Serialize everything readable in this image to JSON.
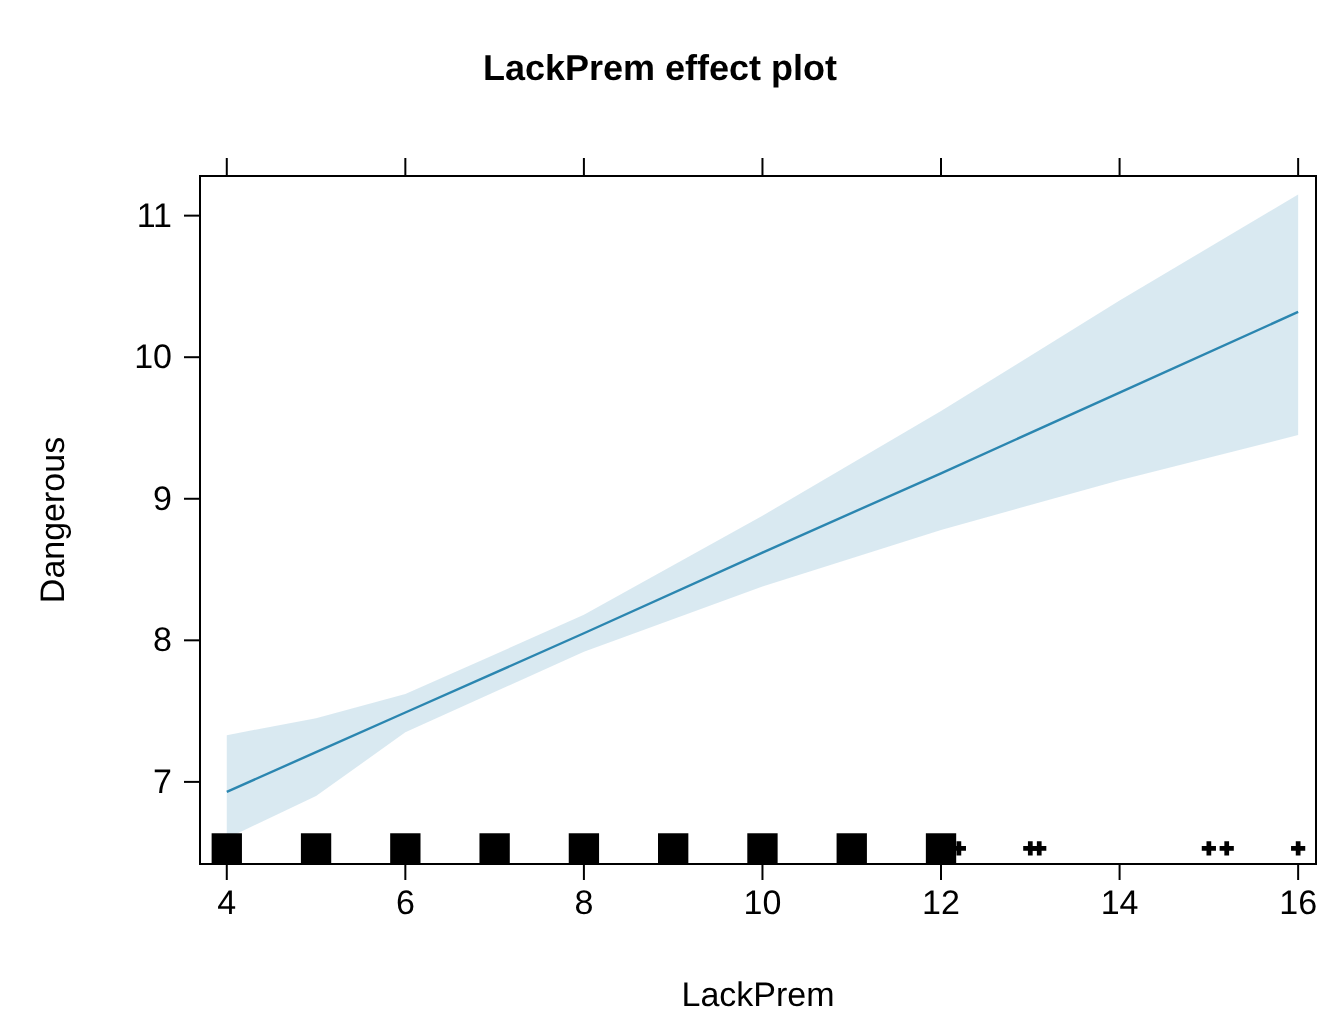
{
  "chart_data": {
    "type": "line",
    "title": "LackPrem effect plot",
    "xlabel": "LackPrem",
    "ylabel": "Dangerous",
    "xlim": [
      3.7,
      16.2
    ],
    "ylim": [
      6.42,
      11.28
    ],
    "xticks": [
      4,
      6,
      8,
      10,
      12,
      14,
      16
    ],
    "yticks": [
      7,
      8,
      9,
      10,
      11
    ],
    "grid": false,
    "series": [
      {
        "color": "#2b86b0",
        "x": [
          4,
          5,
          6,
          8,
          10,
          12,
          14,
          16
        ],
        "values": [
          6.93,
          7.21,
          7.49,
          8.05,
          8.62,
          9.18,
          9.75,
          10.32
        ],
        "lower": [
          6.6,
          6.9,
          7.35,
          7.92,
          8.38,
          8.78,
          9.13,
          9.45
        ],
        "upper": [
          7.33,
          7.45,
          7.62,
          8.18,
          8.88,
          9.62,
          10.4,
          11.15
        ],
        "marker": "none"
      },
      {
        "type": "scatter",
        "color": "#000000",
        "x": [
          4,
          5,
          6,
          7,
          8,
          9,
          10,
          11,
          12
        ],
        "values": [
          6.53,
          6.53,
          6.53,
          6.53,
          6.53,
          6.53,
          6.53,
          6.53,
          6.53
        ],
        "marker": "square"
      },
      {
        "type": "scatter",
        "color": "#000000",
        "x": [
          12.2,
          13,
          13.1,
          15,
          15.2,
          16
        ],
        "values": [
          6.53,
          6.53,
          6.53,
          6.53,
          6.53,
          6.53
        ],
        "marker": "cross"
      }
    ]
  }
}
